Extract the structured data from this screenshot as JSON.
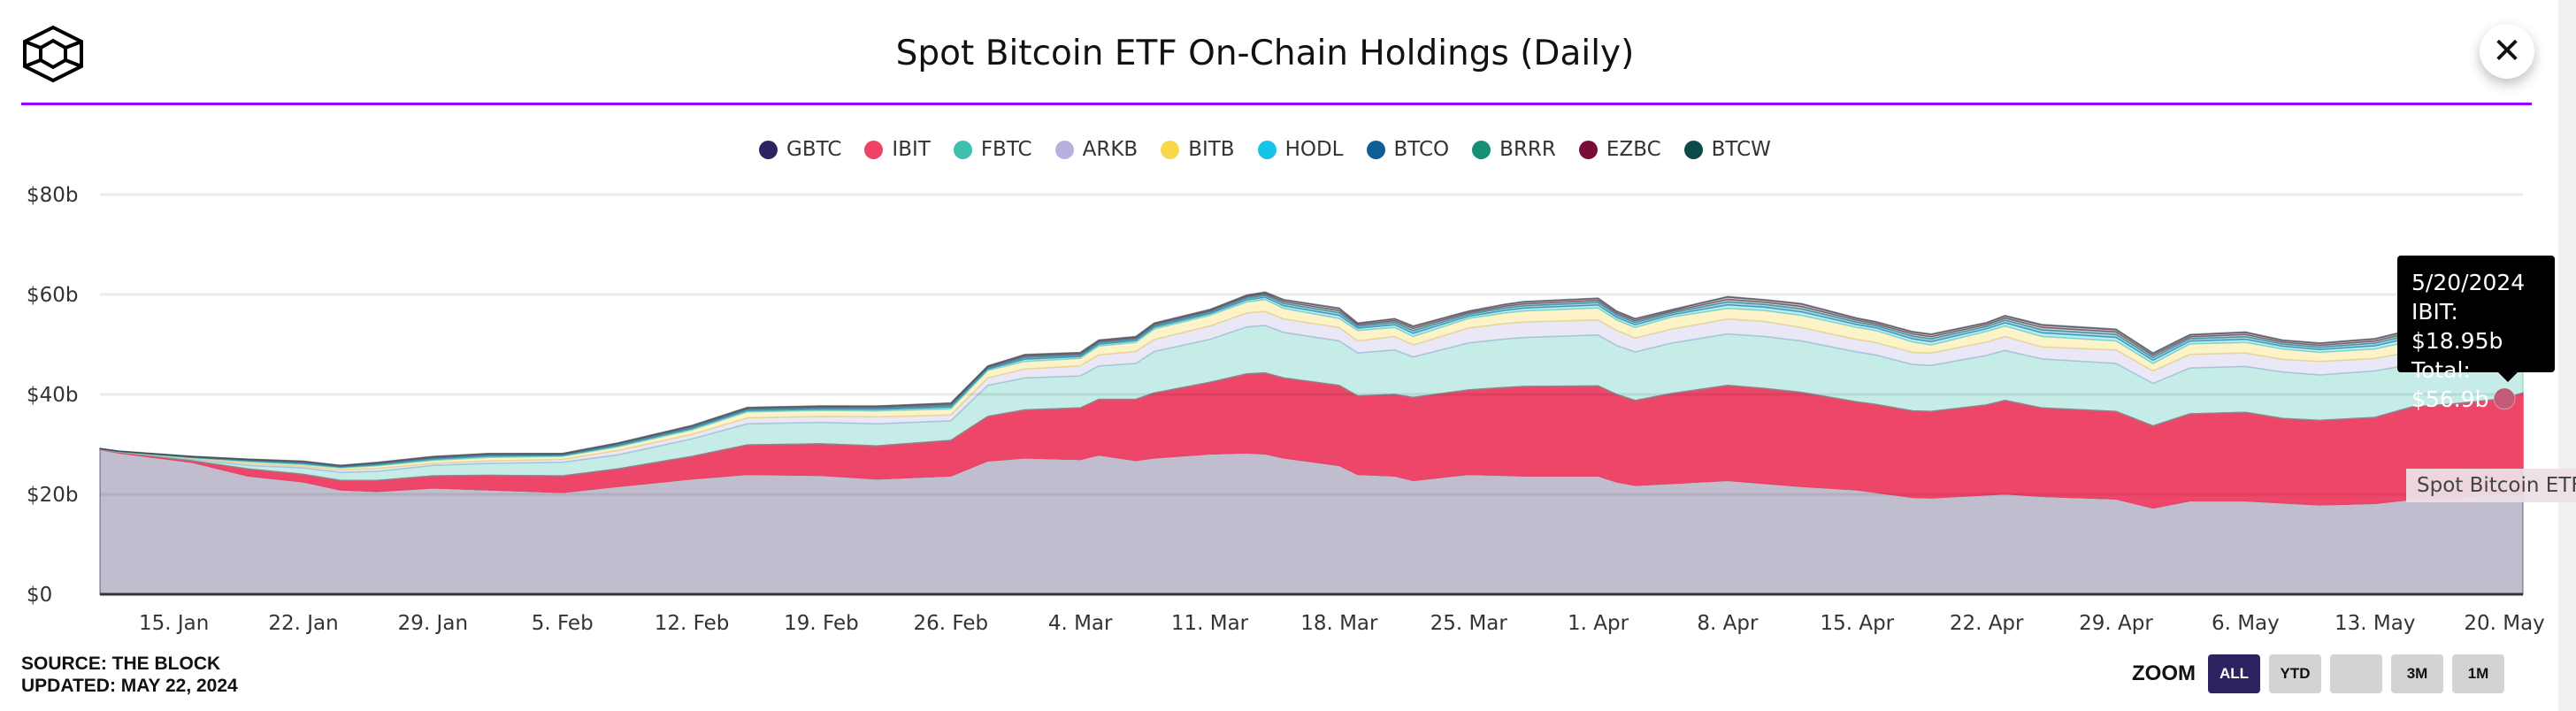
{
  "header": {
    "title": "Spot Bitcoin ETF On-Chain Holdings (Daily)",
    "logo_icon": "cube-logo-icon",
    "close_icon": "close-x-icon"
  },
  "footer": {
    "source": "SOURCE: THE BLOCK",
    "updated": "UPDATED: MAY 22, 2024"
  },
  "zoom": {
    "label": "ZOOM",
    "buttons": [
      "ALL",
      "YTD",
      "",
      "3M",
      "1M"
    ],
    "active": "ALL"
  },
  "tooltip": {
    "date": "5/20/2024",
    "line1": "IBIT: $18.95b",
    "line2": "Total: $56.9b"
  },
  "credit": "Spot Bitcoin ETF",
  "colors": {
    "accent_rule": "#9a00ff",
    "zoom_active": "#2c2360"
  },
  "chart_data": {
    "type": "area",
    "stacked": true,
    "title": "Spot Bitcoin ETF On-Chain Holdings (Daily)",
    "xlabel": "",
    "ylabel": "",
    "ylim": [
      0,
      80
    ],
    "yticks": [
      "$0",
      "$20b",
      "$40b",
      "$60b",
      "$80b"
    ],
    "ytick_values": [
      0,
      20,
      40,
      60,
      80
    ],
    "xlim": [
      "2024-01-11",
      "2024-05-21"
    ],
    "xticks": [
      {
        "date": "2024-01-15",
        "label": "15. Jan"
      },
      {
        "date": "2024-01-22",
        "label": "22. Jan"
      },
      {
        "date": "2024-01-29",
        "label": "29. Jan"
      },
      {
        "date": "2024-02-05",
        "label": "5. Feb"
      },
      {
        "date": "2024-02-12",
        "label": "12. Feb"
      },
      {
        "date": "2024-02-19",
        "label": "19. Feb"
      },
      {
        "date": "2024-02-26",
        "label": "26. Feb"
      },
      {
        "date": "2024-03-04",
        "label": "4. Mar"
      },
      {
        "date": "2024-03-11",
        "label": "11. Mar"
      },
      {
        "date": "2024-03-18",
        "label": "18. Mar"
      },
      {
        "date": "2024-03-25",
        "label": "25. Mar"
      },
      {
        "date": "2024-04-01",
        "label": "1. Apr"
      },
      {
        "date": "2024-04-08",
        "label": "8. Apr"
      },
      {
        "date": "2024-04-15",
        "label": "15. Apr"
      },
      {
        "date": "2024-04-22",
        "label": "22. Apr"
      },
      {
        "date": "2024-04-29",
        "label": "29. Apr"
      },
      {
        "date": "2024-05-06",
        "label": "6. May"
      },
      {
        "date": "2024-05-13",
        "label": "13. May"
      },
      {
        "date": "2024-05-20",
        "label": "20. May"
      }
    ],
    "grid": true,
    "legend": "top-center",
    "highlighted_series": "IBIT",
    "x": [
      "2024-01-11",
      "2024-01-12",
      "2024-01-16",
      "2024-01-19",
      "2024-01-22",
      "2024-01-24",
      "2024-01-26",
      "2024-01-29",
      "2024-02-01",
      "2024-02-05",
      "2024-02-08",
      "2024-02-12",
      "2024-02-15",
      "2024-02-19",
      "2024-02-22",
      "2024-02-26",
      "2024-02-28",
      "2024-03-01",
      "2024-03-04",
      "2024-03-05",
      "2024-03-07",
      "2024-03-08",
      "2024-03-11",
      "2024-03-13",
      "2024-03-14",
      "2024-03-15",
      "2024-03-18",
      "2024-03-19",
      "2024-03-21",
      "2024-03-22",
      "2024-03-25",
      "2024-03-27",
      "2024-03-28",
      "2024-04-01",
      "2024-04-02",
      "2024-04-03",
      "2024-04-05",
      "2024-04-08",
      "2024-04-10",
      "2024-04-12",
      "2024-04-15",
      "2024-04-16",
      "2024-04-18",
      "2024-04-19",
      "2024-04-22",
      "2024-04-23",
      "2024-04-25",
      "2024-04-29",
      "2024-05-01",
      "2024-05-03",
      "2024-05-06",
      "2024-05-08",
      "2024-05-10",
      "2024-05-13",
      "2024-05-15",
      "2024-05-17",
      "2024-05-20",
      "2024-05-21"
    ],
    "series": [
      {
        "name": "GBTC",
        "color": "#2d2560",
        "values": [
          29.0,
          28.3,
          26.4,
          23.7,
          22.5,
          20.9,
          20.6,
          21.3,
          20.9,
          20.4,
          21.6,
          23.1,
          24.0,
          23.8,
          23.1,
          23.7,
          26.7,
          27.3,
          27.0,
          27.9,
          26.8,
          27.3,
          28.1,
          28.3,
          28.1,
          27.3,
          25.8,
          24.0,
          23.7,
          22.8,
          24.0,
          23.8,
          23.7,
          23.7,
          22.5,
          21.8,
          22.2,
          22.8,
          22.2,
          21.6,
          20.9,
          20.4,
          19.4,
          19.3,
          19.9,
          20.1,
          19.6,
          19.1,
          17.3,
          18.7,
          18.7,
          18.3,
          17.9,
          18.2,
          19.0,
          19.3,
          20.2,
          19.6
        ]
      },
      {
        "name": "IBIT",
        "color": "#ee4266",
        "values": [
          0.05,
          0.1,
          0.3,
          1.4,
          1.5,
          1.9,
          2.2,
          2.4,
          2.9,
          3.3,
          3.5,
          4.5,
          5.9,
          6.3,
          6.6,
          7.1,
          8.9,
          9.6,
          10.3,
          11.1,
          12.2,
          13.0,
          14.3,
          15.8,
          16.2,
          16.0,
          16.0,
          15.7,
          16.3,
          16.6,
          16.9,
          17.6,
          17.9,
          18.0,
          17.5,
          17.0,
          18.0,
          19.0,
          19.0,
          18.8,
          17.6,
          17.6,
          17.3,
          17.3,
          18.0,
          18.7,
          17.7,
          17.5,
          16.4,
          17.4,
          17.7,
          16.9,
          16.9,
          17.2,
          18.5,
          18.7,
          18.95,
          20.7
        ]
      },
      {
        "name": "FBTC",
        "color": "#3fbfad",
        "values": [
          0.05,
          0.1,
          0.3,
          0.7,
          1.3,
          1.6,
          1.8,
          2.1,
          2.4,
          2.7,
          2.8,
          3.5,
          4.2,
          4.3,
          4.4,
          3.9,
          6.2,
          6.4,
          6.4,
          6.7,
          7.2,
          8.3,
          8.6,
          9.4,
          9.5,
          9.1,
          8.9,
          8.6,
          8.9,
          8.1,
          9.4,
          9.7,
          9.8,
          10.2,
          9.8,
          9.7,
          10.1,
          10.3,
          10.4,
          10.3,
          10.0,
          9.9,
          9.3,
          9.2,
          9.9,
          10.0,
          9.8,
          9.6,
          8.5,
          9.2,
          9.2,
          9.3,
          9.1,
          9.3,
          8.5,
          8.5,
          10.0,
          10.2
        ]
      },
      {
        "name": "ARKB",
        "color": "#b8b1e0",
        "values": [
          0.02,
          0.05,
          0.15,
          0.4,
          0.3,
          0.5,
          0.6,
          0.4,
          0.5,
          0.6,
          0.9,
          0.9,
          1.2,
          1.2,
          1.4,
          1.2,
          1.5,
          1.8,
          2.0,
          2.2,
          2.4,
          2.4,
          2.7,
          2.8,
          2.8,
          2.7,
          2.7,
          2.4,
          2.7,
          2.4,
          3.0,
          3.1,
          3.1,
          3.0,
          3.0,
          2.8,
          2.8,
          3.0,
          3.0,
          2.7,
          2.5,
          2.5,
          2.4,
          2.5,
          2.7,
          2.8,
          2.4,
          2.7,
          2.5,
          2.7,
          2.7,
          2.5,
          2.7,
          2.5,
          2.5,
          2.5,
          2.8,
          2.8
        ]
      },
      {
        "name": "BITB",
        "color": "#f7d84a",
        "values": [
          0.02,
          0.05,
          0.15,
          0.35,
          0.35,
          0.4,
          0.5,
          0.6,
          0.7,
          0.6,
          0.7,
          0.9,
          1.2,
          1.2,
          1.2,
          1.2,
          1.5,
          1.5,
          1.5,
          1.8,
          1.8,
          2.1,
          2.1,
          2.2,
          2.4,
          2.1,
          1.8,
          2.1,
          1.8,
          1.7,
          1.9,
          2.1,
          2.2,
          2.4,
          2.1,
          2.1,
          2.4,
          2.1,
          2.2,
          2.4,
          2.4,
          2.4,
          2.1,
          1.6,
          2.1,
          2.1,
          2.1,
          1.8,
          1.5,
          2.1,
          2.1,
          2.1,
          1.8,
          1.9,
          2.2,
          2.2,
          2.5,
          2.5
        ]
      },
      {
        "name": "HODL",
        "color": "#17c3e8",
        "values": [
          0.01,
          0.02,
          0.09,
          0.15,
          0.21,
          0.15,
          0.21,
          0.24,
          0.24,
          0.18,
          0.24,
          0.27,
          0.27,
          0.27,
          0.3,
          0.36,
          0.27,
          0.42,
          0.36,
          0.36,
          0.36,
          0.36,
          0.36,
          0.42,
          0.45,
          0.54,
          0.63,
          0.45,
          0.54,
          0.63,
          0.45,
          0.54,
          0.57,
          0.6,
          0.54,
          0.54,
          0.45,
          0.72,
          0.66,
          0.72,
          0.57,
          0.54,
          0.63,
          0.66,
          0.54,
          0.63,
          0.72,
          0.72,
          0.63,
          0.57,
          0.63,
          0.54,
          0.57,
          0.63,
          0.69,
          0.63,
          0.74,
          0.72
        ]
      },
      {
        "name": "BTCO",
        "color": "#0d5e96",
        "values": [
          0.01,
          0.01,
          0.08,
          0.13,
          0.18,
          0.13,
          0.18,
          0.2,
          0.2,
          0.15,
          0.2,
          0.23,
          0.23,
          0.23,
          0.25,
          0.3,
          0.23,
          0.35,
          0.3,
          0.3,
          0.3,
          0.3,
          0.3,
          0.35,
          0.38,
          0.45,
          0.53,
          0.38,
          0.45,
          0.53,
          0.38,
          0.45,
          0.48,
          0.5,
          0.45,
          0.45,
          0.38,
          0.6,
          0.55,
          0.6,
          0.48,
          0.45,
          0.53,
          0.55,
          0.45,
          0.53,
          0.6,
          0.6,
          0.53,
          0.48,
          0.53,
          0.45,
          0.48,
          0.53,
          0.58,
          0.53,
          0.61,
          0.6
        ]
      },
      {
        "name": "BRRR",
        "color": "#168f75",
        "values": [
          0,
          0.01,
          0.06,
          0.1,
          0.14,
          0.1,
          0.14,
          0.16,
          0.16,
          0.12,
          0.16,
          0.18,
          0.18,
          0.18,
          0.2,
          0.24,
          0.18,
          0.28,
          0.24,
          0.24,
          0.24,
          0.24,
          0.24,
          0.28,
          0.3,
          0.36,
          0.42,
          0.3,
          0.36,
          0.42,
          0.3,
          0.36,
          0.38,
          0.4,
          0.36,
          0.36,
          0.3,
          0.48,
          0.44,
          0.48,
          0.38,
          0.36,
          0.42,
          0.44,
          0.36,
          0.42,
          0.48,
          0.48,
          0.42,
          0.38,
          0.42,
          0.36,
          0.38,
          0.42,
          0.46,
          0.42,
          0.49,
          0.48
        ]
      },
      {
        "name": "EZBC",
        "color": "#7a0c3a",
        "values": [
          0,
          0.01,
          0.06,
          0.1,
          0.14,
          0.1,
          0.14,
          0.16,
          0.16,
          0.12,
          0.16,
          0.18,
          0.18,
          0.18,
          0.2,
          0.24,
          0.18,
          0.28,
          0.24,
          0.24,
          0.24,
          0.24,
          0.24,
          0.28,
          0.3,
          0.36,
          0.42,
          0.3,
          0.36,
          0.42,
          0.3,
          0.36,
          0.38,
          0.4,
          0.36,
          0.36,
          0.3,
          0.48,
          0.44,
          0.48,
          0.38,
          0.36,
          0.42,
          0.44,
          0.36,
          0.42,
          0.48,
          0.48,
          0.42,
          0.38,
          0.42,
          0.36,
          0.38,
          0.42,
          0.46,
          0.42,
          0.49,
          0.48
        ]
      },
      {
        "name": "BTCW",
        "color": "#0c4a4a",
        "values": [
          0,
          0,
          0.02,
          0.03,
          0.04,
          0.03,
          0.04,
          0.04,
          0.04,
          0.03,
          0.04,
          0.05,
          0.05,
          0.05,
          0.05,
          0.06,
          0.05,
          0.07,
          0.06,
          0.06,
          0.06,
          0.06,
          0.06,
          0.07,
          0.08,
          0.09,
          0.11,
          0.08,
          0.09,
          0.11,
          0.08,
          0.09,
          0.1,
          0.1,
          0.09,
          0.09,
          0.08,
          0.12,
          0.11,
          0.12,
          0.1,
          0.09,
          0.11,
          0.11,
          0.09,
          0.11,
          0.12,
          0.12,
          0.11,
          0.1,
          0.11,
          0.09,
          0.1,
          0.11,
          0.12,
          0.11,
          0.12,
          0.12
        ]
      }
    ]
  }
}
